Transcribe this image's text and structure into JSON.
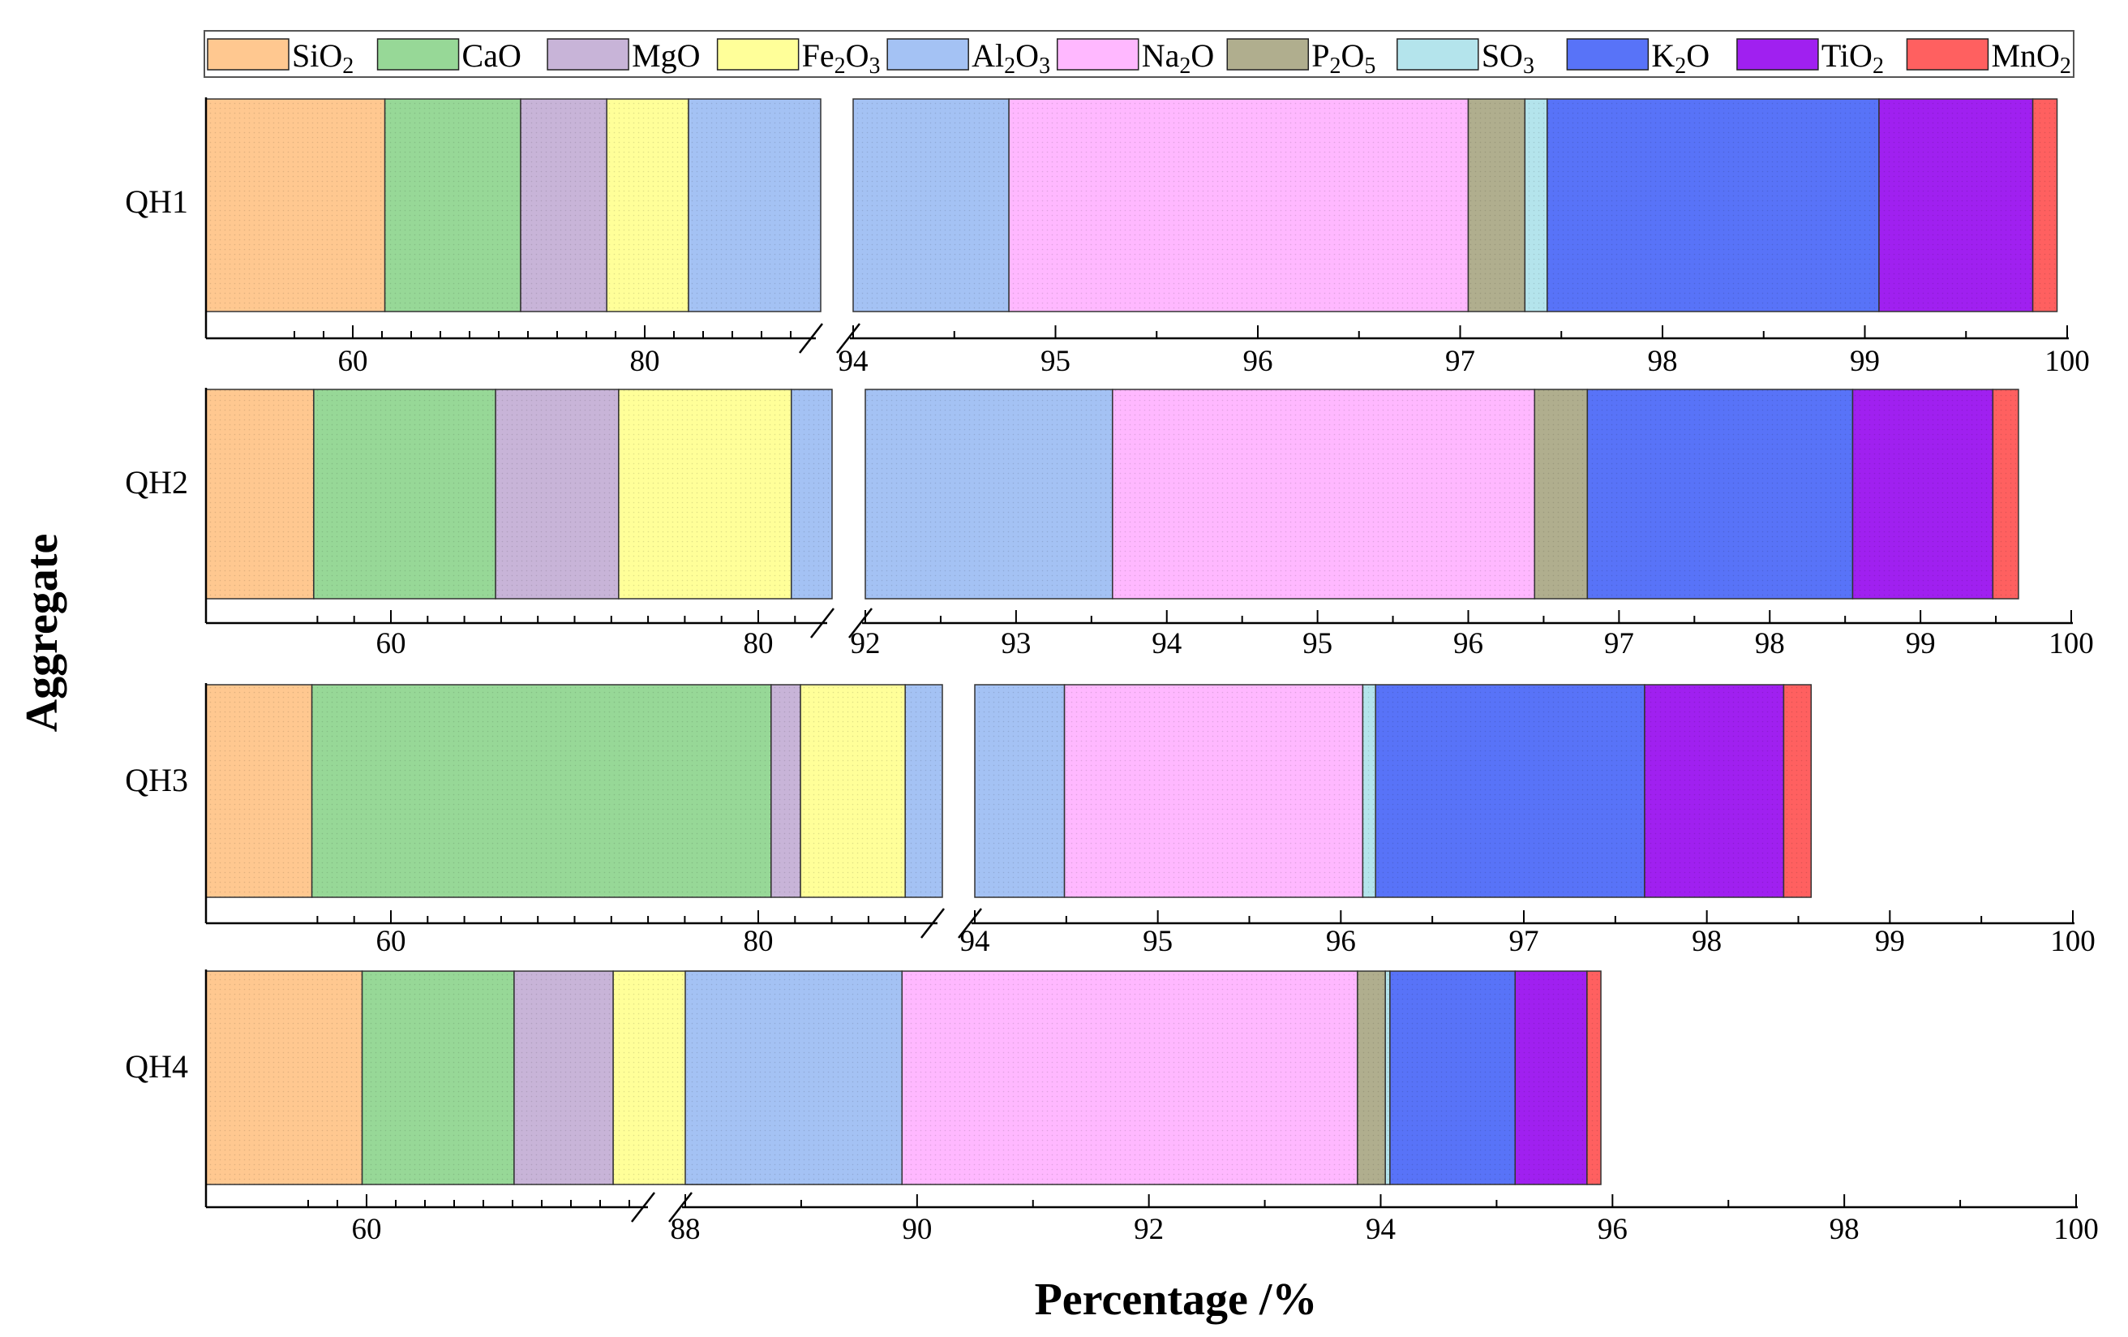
{
  "chart_data": {
    "type": "bar",
    "orientation": "horizontal",
    "stacked": true,
    "xlabel": "Percentage /%",
    "ylabel": "Aggregate",
    "legend_position": "top",
    "legend": [
      {
        "key": "SiO2",
        "main": "SiO",
        "sub": "2",
        "color": "#FFC890"
      },
      {
        "key": "CaO",
        "main": "CaO",
        "sub": "",
        "color": "#97D897"
      },
      {
        "key": "MgO",
        "main": "MgO",
        "sub": "",
        "color": "#C8B4D8"
      },
      {
        "key": "Fe2O3",
        "main": "Fe",
        "sub": "2",
        "main2": "O",
        "sub2": "3",
        "color": "#FFFF99"
      },
      {
        "key": "Al2O3",
        "main": "Al",
        "sub": "2",
        "main2": "O",
        "sub2": "3",
        "color": "#A4C2F4"
      },
      {
        "key": "Na2O",
        "main": "Na",
        "sub": "2",
        "main2": "O",
        "sub2": "",
        "color": "#FFB8FF"
      },
      {
        "key": "P2O5",
        "main": "P",
        "sub": "2",
        "main2": "O",
        "sub2": "5",
        "color": "#B0AE8E"
      },
      {
        "key": "SO3",
        "main": "SO",
        "sub": "3",
        "color": "#B4E4EC"
      },
      {
        "key": "K2O",
        "main": "K",
        "sub": "2",
        "main2": "O",
        "sub2": "",
        "color": "#5873F8"
      },
      {
        "key": "TiO2",
        "main": "TiO",
        "sub": "2",
        "color": "#A020F0",
        "alt_color": "#D024F0"
      },
      {
        "key": "MnO2",
        "main": "MnO",
        "sub": "2",
        "color": "#FF6060"
      }
    ],
    "rows": [
      {
        "label": "QH1",
        "break_at": 94,
        "left_ticks": [
          60,
          80
        ],
        "right_ticks": [
          94,
          95,
          96,
          97,
          98,
          99,
          100
        ],
        "tick_labels": [
          "60",
          "80",
          "94",
          "95",
          "96",
          "97",
          "98",
          "99",
          "100"
        ],
        "segments": [
          {
            "comp": "SiO2",
            "value": 62.2
          },
          {
            "comp": "CaO",
            "value": 9.3
          },
          {
            "comp": "MgO",
            "value": 5.9
          },
          {
            "comp": "Fe2O3",
            "value": 5.6
          },
          {
            "comp": "Al2O3",
            "value": 11.77
          },
          {
            "comp": "Na2O",
            "value": 2.27
          },
          {
            "comp": "P2O5",
            "value": 0.28
          },
          {
            "comp": "SO3",
            "value": 0.11
          },
          {
            "comp": "K2O",
            "value": 1.64
          },
          {
            "comp": "TiO2",
            "value": 0.76
          },
          {
            "comp": "MnO2",
            "value": 0.12
          }
        ]
      },
      {
        "label": "QH2",
        "break_at": 92,
        "left_ticks": [
          60,
          80
        ],
        "right_ticks": [
          92,
          93,
          94,
          95,
          96,
          97,
          98,
          99,
          100
        ],
        "tick_labels": [
          "60",
          "80",
          "92",
          "93",
          "94",
          "95",
          "96",
          "97",
          "98",
          "99",
          "100"
        ],
        "segments": [
          {
            "comp": "SiO2",
            "value": 55.8
          },
          {
            "comp": "CaO",
            "value": 9.9
          },
          {
            "comp": "MgO",
            "value": 6.7
          },
          {
            "comp": "Fe2O3",
            "value": 9.4
          },
          {
            "comp": "Al2O3",
            "value": 11.84
          },
          {
            "comp": "Na2O",
            "value": 2.8
          },
          {
            "comp": "P2O5",
            "value": 0.35
          },
          {
            "comp": "SO3",
            "value": 0.0
          },
          {
            "comp": "K2O",
            "value": 1.76
          },
          {
            "comp": "TiO2",
            "value": 0.93
          },
          {
            "comp": "MnO2",
            "value": 0.17
          }
        ]
      },
      {
        "label": "QH3",
        "break_at": 94,
        "left_ticks": [
          60,
          80
        ],
        "right_ticks": [
          94,
          95,
          96,
          97,
          98,
          99,
          100
        ],
        "tick_labels": [
          "60",
          "80",
          "94",
          "95",
          "96",
          "97",
          "98",
          "99",
          "100"
        ],
        "segments": [
          {
            "comp": "SiO2",
            "value": 55.7
          },
          {
            "comp": "CaO",
            "value": 25.0
          },
          {
            "comp": "MgO",
            "value": 1.6
          },
          {
            "comp": "Fe2O3",
            "value": 5.7
          },
          {
            "comp": "Al2O3",
            "value": 6.49
          },
          {
            "comp": "Na2O",
            "value": 1.63
          },
          {
            "comp": "P2O5",
            "value": 0.0
          },
          {
            "comp": "SO3",
            "value": 0.07
          },
          {
            "comp": "K2O",
            "value": 1.47
          },
          {
            "comp": "TiO2",
            "value": 0.76
          },
          {
            "comp": "MnO2",
            "value": 0.15
          }
        ]
      },
      {
        "label": "QH4",
        "break_at": 88,
        "left_ticks": [
          60
        ],
        "right_ticks": [
          88,
          90,
          92,
          94,
          96,
          98,
          100
        ],
        "tick_labels": [
          "60",
          "88",
          "90",
          "92",
          "94",
          "96",
          "98",
          "100"
        ],
        "segments": [
          {
            "comp": "SiO2",
            "value": 59.8
          },
          {
            "comp": "CaO",
            "value": 6.9
          },
          {
            "comp": "MgO",
            "value": 4.5
          },
          {
            "comp": "Fe2O3",
            "value": 6.2
          },
          {
            "comp": "Al2O3",
            "value": 12.47
          },
          {
            "comp": "Na2O",
            "value": 3.93
          },
          {
            "comp": "P2O5",
            "value": 0.24
          },
          {
            "comp": "SO3",
            "value": 0.04
          },
          {
            "comp": "K2O",
            "value": 1.08
          },
          {
            "comp": "TiO2",
            "value": 0.62
          },
          {
            "comp": "MnO2",
            "value": 0.12
          }
        ]
      }
    ]
  }
}
